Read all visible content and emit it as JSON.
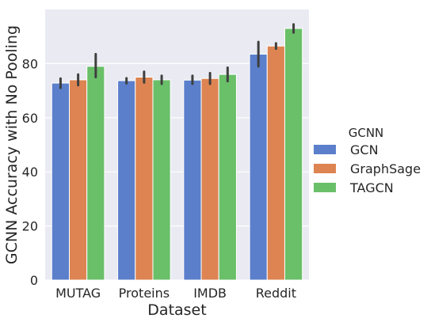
{
  "chart_data": {
    "type": "bar",
    "xlabel": "Dataset",
    "ylabel": "GCNN Accuracy with No Pooling",
    "ylim": [
      0,
      100
    ],
    "yticks": [
      0,
      20,
      40,
      60,
      80
    ],
    "grid": true,
    "legend": {
      "title": "GCNN",
      "placement": "right"
    },
    "categories": [
      "MUTAG",
      "Proteins",
      "IMDB",
      "Reddit"
    ],
    "series": [
      {
        "name": "GCN",
        "color": "#5b7fcb",
        "values": [
          72.8,
          73.7,
          73.9,
          83.5
        ],
        "ci": [
          [
            71.0,
            74.5
          ],
          [
            72.7,
            74.6
          ],
          [
            72.5,
            75.5
          ],
          [
            79.0,
            88.0
          ]
        ]
      },
      {
        "name": "GraphSage",
        "color": "#dd8452",
        "values": [
          74.0,
          75.0,
          74.5,
          86.5
        ],
        "ci": [
          [
            72.0,
            76.0
          ],
          [
            73.0,
            77.0
          ],
          [
            72.5,
            76.5
          ],
          [
            85.5,
            87.5
          ]
        ]
      },
      {
        "name": "TAGCN",
        "color": "#6abf69",
        "values": [
          79.0,
          74.0,
          76.0,
          93.0
        ],
        "ci": [
          [
            75.0,
            83.5
          ],
          [
            72.5,
            75.5
          ],
          [
            73.5,
            78.5
          ],
          [
            91.5,
            94.5
          ]
        ]
      }
    ],
    "background": "#eaeaf2",
    "error_bar_color": "#3f3f3f"
  }
}
